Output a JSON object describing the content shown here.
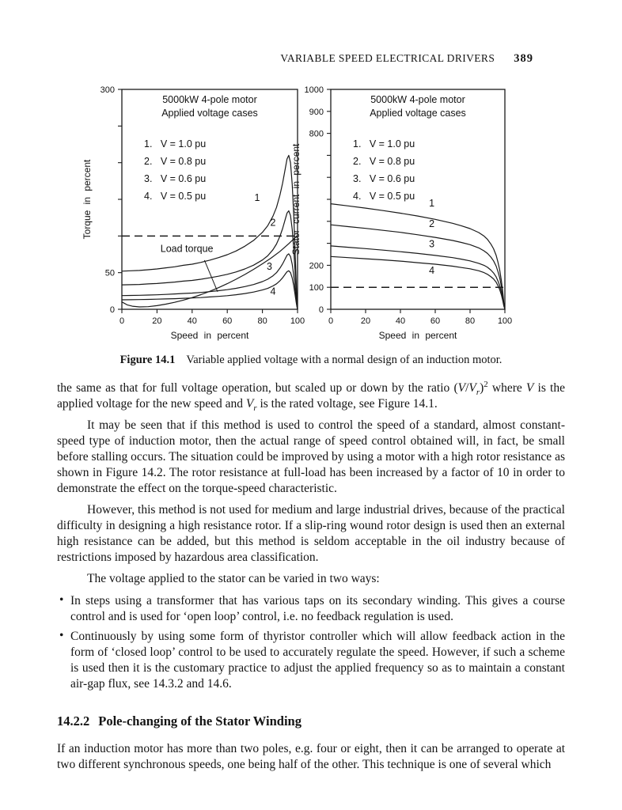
{
  "header": {
    "title": "VARIABLE SPEED ELECTRICAL DRIVERS",
    "page_number": "389"
  },
  "figure": {
    "caption_label": "Figure 14.1",
    "caption_text": "Variable applied voltage with a normal design of an induction motor."
  },
  "body": {
    "bullet_char": "•",
    "p1_runs": [
      {
        "t": "the same as that for full voltage operation, but scaled up or down by the ratio ("
      },
      {
        "t": "V",
        "s": "i"
      },
      {
        "t": "/"
      },
      {
        "t": "V",
        "s": "i"
      },
      {
        "t": "r",
        "s": "sub"
      },
      {
        "t": ")"
      },
      {
        "t": "2",
        "s": "sup"
      },
      {
        "t": " where "
      },
      {
        "t": "V",
        "s": "i"
      },
      {
        "t": " is the applied voltage for the new speed and "
      },
      {
        "t": "V",
        "s": "i"
      },
      {
        "t": "r",
        "s": "sub"
      },
      {
        "t": " is the rated voltage, see Figure 14.1."
      }
    ],
    "p2": "It may be seen that if this method is used to control the speed of a standard, almost constant-speed type of induction motor, then the actual range of speed control obtained will, in fact, be small before stalling occurs. The situation could be improved by using a motor with a high rotor resistance as shown in Figure 14.2. The rotor resistance at full-load has been increased by a factor of 10 in order to demonstrate the effect on the torque-speed characteristic.",
    "p3": "However, this method is not used for medium and large industrial drives, because of the practical difficulty in designing a high resistance rotor. If a slip-ring wound rotor design is used then an external high resistance can be added, but this method is seldom acceptable in the oil industry because of restrictions imposed by hazardous area classification.",
    "p4": "The voltage applied to the stator can be varied in two ways:",
    "bullets": [
      "In steps using a transformer that has various taps on its secondary winding. This gives a course control and is used for ‘open loop’ control, i.e. no feedback regulation is used.",
      "Continuously by using some form of thyristor controller which will allow feedback action in the form of ‘closed loop’ control to be used to accurately regulate the speed. However, if such a scheme is used then it is the customary practice to adjust the applied frequency so as to maintain a constant air-gap flux, see 14.3.2 and 14.6."
    ],
    "heading_number": "14.2.2",
    "heading_text": "Pole-changing of the Stator Winding",
    "p5": "If an induction motor has more than two poles, e.g. four or eight, then it can be arranged to operate at two different synchronous speeds, one being half of the other. This technique is one of several which"
  },
  "chart_data": [
    {
      "type": "line",
      "title_lines": [
        "5000kW  4-pole  motor",
        "Applied voltage cases"
      ],
      "legend": [
        "1.   V = 1.0 pu",
        "2.   V = 0.8 pu",
        "3.   V = 0.6 pu",
        "4.   V = 0.5 pu"
      ],
      "xlabel": "Speed in percent",
      "ylabel": "Torque in percent",
      "xlim": [
        0,
        100
      ],
      "ylim": [
        0,
        300
      ],
      "xticks": [
        0,
        20,
        40,
        60,
        80,
        100
      ],
      "yticks": [
        0,
        50,
        100,
        150,
        200,
        250,
        300
      ],
      "ytick_labels": [
        {
          "value": 300,
          "label": "300"
        },
        {
          "value": 50,
          "label": "50"
        },
        {
          "value": 0,
          "label": "0"
        }
      ],
      "dashed_line_y": 100,
      "grid": false,
      "legend_position": "inside-top-left",
      "series": [
        {
          "name": "1 (V = 1.0 pu)",
          "x": [
            0,
            5,
            10,
            15,
            20,
            25,
            30,
            35,
            40,
            45,
            50,
            55,
            60,
            65,
            70,
            75,
            80,
            83,
            86,
            88,
            90,
            91.5,
            93,
            94,
            95,
            96,
            97,
            97.8,
            98.5,
            99.2,
            99.7,
            100
          ],
          "y": [
            52,
            52.5,
            53,
            54,
            55,
            56.5,
            58,
            60,
            61.5,
            64,
            67,
            70.5,
            74.5,
            79.5,
            86,
            94,
            105,
            114,
            127,
            139,
            156,
            172,
            192,
            205,
            210,
            200,
            170,
            130,
            85,
            40,
            12,
            0
          ]
        },
        {
          "name": "2 (V = 0.8 pu)",
          "x": [
            0,
            5,
            10,
            15,
            20,
            25,
            30,
            35,
            40,
            45,
            50,
            55,
            60,
            65,
            70,
            75,
            80,
            83,
            86,
            88,
            90,
            91.5,
            93,
            94,
            95,
            96,
            97,
            97.8,
            98.5,
            99.2,
            99.7,
            100
          ],
          "y": [
            33.3,
            33.6,
            33.9,
            34.6,
            35.2,
            36.2,
            37.1,
            38.4,
            39.4,
            41,
            42.9,
            45.1,
            47.7,
            50.9,
            55,
            60.2,
            67.2,
            73,
            81.3,
            89,
            99.8,
            110.1,
            122.9,
            131.2,
            134.4,
            128,
            108.8,
            83.2,
            54.4,
            25.6,
            7.7,
            0
          ]
        },
        {
          "name": "3 (V = 0.6 pu)",
          "x": [
            0,
            5,
            10,
            15,
            20,
            25,
            30,
            35,
            40,
            45,
            50,
            55,
            60,
            65,
            70,
            75,
            80,
            83,
            86,
            88,
            90,
            91.5,
            93,
            94,
            95,
            96,
            97,
            97.8,
            98.5,
            99.2,
            99.7,
            100
          ],
          "y": [
            18.7,
            18.9,
            19.1,
            19.4,
            19.8,
            20.3,
            20.9,
            21.6,
            22.1,
            23,
            24.1,
            25.4,
            26.8,
            28.6,
            31,
            33.8,
            37.8,
            41,
            45.7,
            50,
            56.2,
            61.9,
            69.1,
            73.8,
            75.6,
            72,
            61.2,
            46.8,
            30.6,
            14.4,
            4.3,
            0
          ]
        },
        {
          "name": "4 (V = 0.5 pu)",
          "x": [
            0,
            5,
            10,
            15,
            20,
            25,
            30,
            35,
            40,
            45,
            50,
            55,
            60,
            65,
            70,
            75,
            80,
            83,
            86,
            88,
            90,
            91.5,
            93,
            94,
            95,
            96,
            97,
            97.8,
            98.5,
            99.2,
            99.7,
            100
          ],
          "y": [
            13,
            13.1,
            13.3,
            13.5,
            13.8,
            14.1,
            14.5,
            15,
            15.4,
            16,
            16.8,
            17.6,
            18.6,
            19.9,
            21.5,
            23.5,
            26.3,
            28.5,
            31.8,
            34.8,
            39,
            43,
            48,
            51.3,
            52.5,
            50,
            42.5,
            32.5,
            21.3,
            10,
            3,
            0
          ]
        },
        {
          "name": "Load torque",
          "x": [
            0,
            3,
            6,
            10,
            15,
            20,
            25,
            30,
            35,
            40,
            45,
            50,
            55,
            60,
            65,
            70,
            75,
            80,
            85,
            90,
            95,
            100
          ],
          "y": [
            10,
            6,
            4.2,
            3.2,
            3.6,
            5,
            7,
            9.5,
            12.5,
            16,
            20,
            24.5,
            29.5,
            35,
            41,
            47.5,
            54.5,
            62,
            70,
            79,
            89.5,
            101
          ]
        }
      ],
      "series_labels": [
        {
          "text": "1",
          "x": 77,
          "y": 148
        },
        {
          "text": "2",
          "x": 86,
          "y": 114
        },
        {
          "text": "3",
          "x": 84,
          "y": 54
        },
        {
          "text": "4",
          "x": 86,
          "y": 20
        }
      ],
      "annotation": {
        "text": "Load torque",
        "x": 37,
        "y": 78,
        "line": [
          47,
          67,
          54.5,
          24
        ]
      }
    },
    {
      "type": "line",
      "title_lines": [
        "5000kW  4-pole  motor",
        "Applied voltage cases"
      ],
      "legend": [
        "1.   V = 1.0 pu",
        "2.   V = 0.8 pu",
        "3.   V = 0.6 pu",
        "4.   V = 0.5 pu"
      ],
      "xlabel": "Speed in percent",
      "ylabel": "Stator current in percent",
      "xlim": [
        0,
        100
      ],
      "ylim": [
        0,
        1000
      ],
      "xticks": [
        0,
        20,
        40,
        60,
        80,
        100
      ],
      "yticks": [
        0,
        100,
        200,
        300,
        400,
        500,
        600,
        700,
        800,
        900,
        1000
      ],
      "ytick_labels": [
        {
          "value": 1000,
          "label": "1000"
        },
        {
          "value": 900,
          "label": "900"
        },
        {
          "value": 800,
          "label": "800"
        },
        {
          "value": 200,
          "label": "200"
        },
        {
          "value": 100,
          "label": "100"
        },
        {
          "value": 0,
          "label": "0"
        }
      ],
      "dashed_line_y": 100,
      "grid": false,
      "legend_position": "inside-top-left",
      "series": [
        {
          "name": "1 (V = 1.0 pu)",
          "x": [
            0,
            10,
            20,
            30,
            40,
            50,
            60,
            70,
            75,
            80,
            85,
            88,
            90,
            92,
            93.5,
            95,
            96,
            97,
            98,
            98.8,
            99.4,
            100
          ],
          "y": [
            480,
            470,
            460,
            449,
            437,
            424,
            409,
            391,
            380,
            367,
            349,
            333,
            318,
            296,
            275,
            245,
            215,
            180,
            130,
            75,
            30,
            0
          ]
        },
        {
          "name": "2 (V = 0.8 pu)",
          "x": [
            0,
            10,
            20,
            30,
            40,
            50,
            60,
            70,
            75,
            80,
            85,
            88,
            90,
            92,
            93.5,
            95,
            96,
            97,
            98,
            98.8,
            99.4,
            100
          ],
          "y": [
            384,
            376,
            368,
            359,
            350,
            339,
            327,
            313,
            304,
            294,
            279,
            266,
            254,
            237,
            220,
            196,
            172,
            144,
            104,
            60,
            24,
            0
          ]
        },
        {
          "name": "3 (V = 0.6 pu)",
          "x": [
            0,
            10,
            20,
            30,
            40,
            50,
            60,
            70,
            75,
            80,
            85,
            88,
            90,
            92,
            93.5,
            95,
            96,
            97,
            98,
            98.8,
            99.4,
            100
          ],
          "y": [
            288,
            282,
            276,
            269,
            262,
            254,
            245,
            235,
            228,
            220,
            209,
            200,
            191,
            178,
            165,
            147,
            129,
            108,
            78,
            45,
            18,
            0
          ]
        },
        {
          "name": "4 (V = 0.5 pu)",
          "x": [
            0,
            10,
            20,
            30,
            40,
            50,
            60,
            70,
            75,
            80,
            85,
            88,
            90,
            92,
            93.5,
            95,
            96,
            97,
            98,
            98.8,
            99.4,
            100
          ],
          "y": [
            240,
            235,
            230,
            225,
            219,
            212,
            205,
            196,
            190,
            184,
            175,
            167,
            159,
            148,
            138,
            123,
            108,
            90,
            65,
            38,
            15,
            0
          ]
        }
      ],
      "series_labels": [
        {
          "text": "1",
          "x": 58,
          "y": 468
        },
        {
          "text": "2",
          "x": 58,
          "y": 375
        },
        {
          "text": "3",
          "x": 58,
          "y": 282
        },
        {
          "text": "4",
          "x": 58,
          "y": 162
        }
      ],
      "annotation": null
    }
  ]
}
